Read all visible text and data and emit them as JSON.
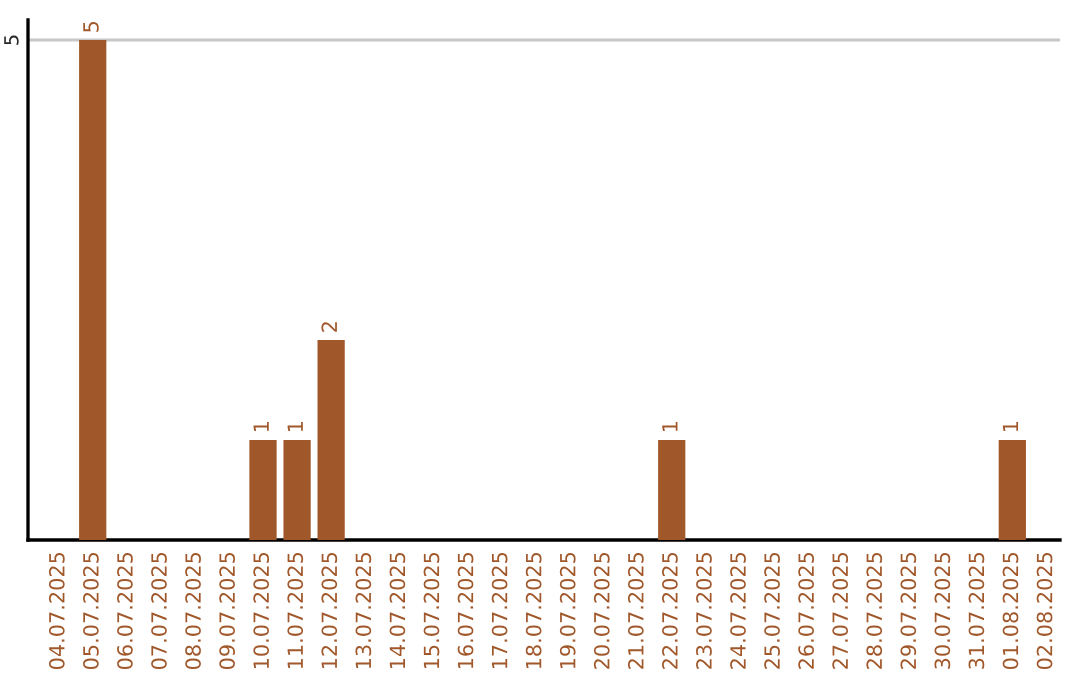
{
  "chart_data": {
    "type": "bar",
    "categories": [
      "04.07.2025",
      "05.07.2025",
      "06.07.2025",
      "07.07.2025",
      "08.07.2025",
      "09.07.2025",
      "10.07.2025",
      "11.07.2025",
      "12.07.2025",
      "13.07.2025",
      "14.07.2025",
      "15.07.2025",
      "16.07.2025",
      "17.07.2025",
      "18.07.2025",
      "19.07.2025",
      "20.07.2025",
      "21.07.2025",
      "22.07.2025",
      "23.07.2025",
      "24.07.2025",
      "25.07.2025",
      "26.07.2025",
      "27.07.2025",
      "28.07.2025",
      "29.07.2025",
      "30.07.2025",
      "31.07.2025",
      "01.08.2025",
      "02.08.2025"
    ],
    "values": [
      0,
      5,
      0,
      0,
      0,
      0,
      1,
      1,
      2,
      0,
      0,
      0,
      0,
      0,
      0,
      0,
      0,
      0,
      1,
      0,
      0,
      0,
      0,
      0,
      0,
      0,
      0,
      0,
      1,
      0
    ],
    "color": "#a0572a",
    "value_labels": [
      null,
      "5",
      null,
      null,
      null,
      null,
      "1",
      "1",
      "2",
      null,
      null,
      null,
      null,
      null,
      null,
      null,
      null,
      null,
      "1",
      null,
      null,
      null,
      null,
      null,
      null,
      null,
      null,
      null,
      "1",
      null
    ],
    "ylim": [
      0,
      5.2
    ],
    "yticks": [
      5
    ],
    "grid": "y"
  }
}
